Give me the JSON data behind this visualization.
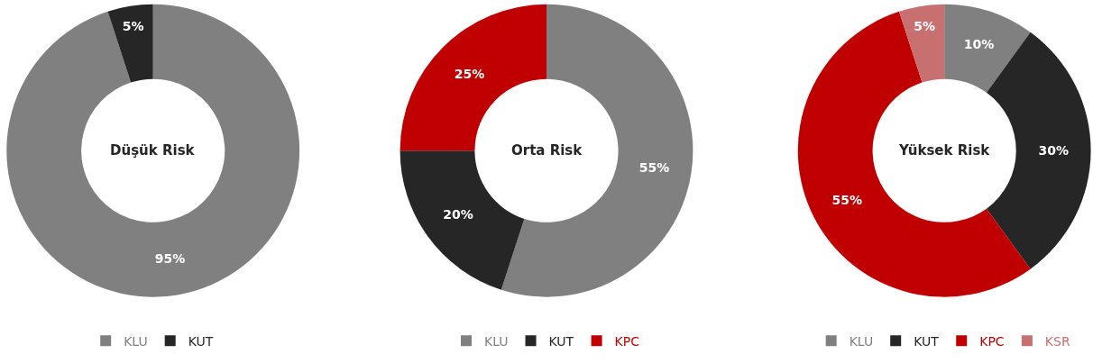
{
  "chart_data": [
    {
      "type": "donut",
      "title": "Düşük Risk",
      "categories": [
        "KLU",
        "KUT"
      ],
      "values": [
        95,
        5
      ],
      "value_labels": [
        "95%",
        "5%"
      ],
      "colors": [
        "#808080",
        "#262626"
      ],
      "data_labels": true,
      "legend": "bottom"
    },
    {
      "type": "donut",
      "title": "Orta Risk",
      "categories": [
        "KLU",
        "KUT",
        "KPC"
      ],
      "values": [
        55,
        20,
        25
      ],
      "value_labels": [
        "55%",
        "20%",
        "25%"
      ],
      "colors": [
        "#808080",
        "#262626",
        "#c00000"
      ],
      "data_labels": true,
      "legend": "bottom"
    },
    {
      "type": "donut",
      "title": "Yüksek Risk",
      "categories": [
        "KLU",
        "KUT",
        "KPC",
        "KSR"
      ],
      "values": [
        10,
        30,
        55,
        5
      ],
      "value_labels": [
        "10%",
        "30%",
        "55%",
        "5%"
      ],
      "colors": [
        "#808080",
        "#262626",
        "#c00000",
        "#c87070"
      ],
      "data_labels": true,
      "legend": "bottom"
    }
  ]
}
